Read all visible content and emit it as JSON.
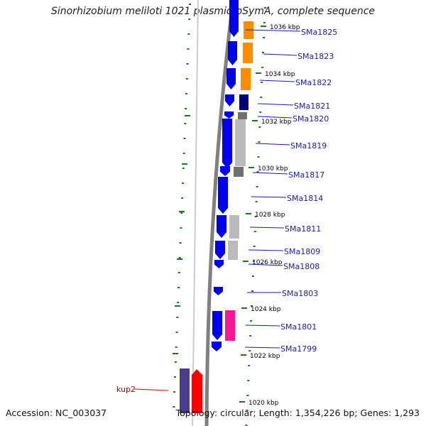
{
  "title": "Sinorhizobium meliloti 1021 plasmid pSymA, complete sequence",
  "accession": "Accession: NC_003037",
  "topology": "Topology: circular; Length: 1,354,226 bp; Genes: 1,293",
  "colors": {
    "backbone": "#808080",
    "tick": "#1a7a1a",
    "cds_blue": "#0000ee",
    "cds_navy": "#000080",
    "cds_orange": "#ff8c00",
    "cds_gray_light": "#bbbbbb",
    "cds_gray_dark": "#707070",
    "cds_magenta": "#ff1493",
    "cds_slate": "#483d8b",
    "cds_red": "#ff0000",
    "label_blue": "#1a1aaa",
    "label_red": "#cc0000"
  },
  "kbp_labels": [
    "1036 kbp",
    "1034 kbp",
    "1032 kbp",
    "1030 kbp",
    "1028 kbp",
    "1026 kbp",
    "1024 kbp",
    "1022 kbp",
    "1020 kbp"
  ],
  "gene_labels": [
    "SMa1825",
    "SMa1823",
    "SMa1822",
    "SMa1821",
    "SMa1820",
    "SMa1819",
    "SMa1817",
    "SMa1814",
    "SMa1811",
    "SMa1809",
    "SMa1808",
    "SMa1803",
    "SMa1801",
    "SMa1799",
    "kup2"
  ]
}
